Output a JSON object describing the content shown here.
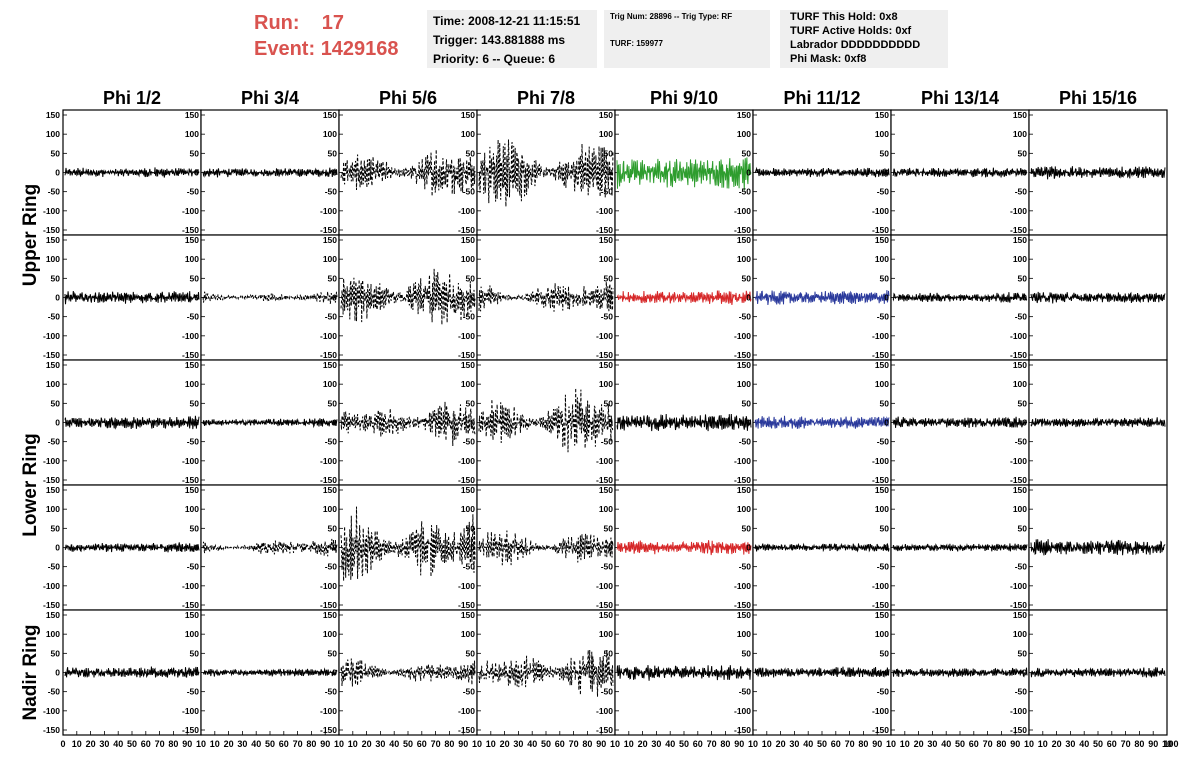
{
  "header": {
    "run_label": "Run:",
    "run_value": "17",
    "event_label": "Event:",
    "event_value": "1429168",
    "time": "Time: 2008-12-21 11:15:51",
    "trigger": "Trigger: 143.881888 ms",
    "priority": "Priority: 6 -- Queue: 6",
    "trig_num": "Trig Num: 28896 -- Trig Type: RF",
    "turf": "TURF: 159977",
    "turf_this_hold": "TURF This Hold: 0x8",
    "turf_active_holds": "TURF Active Holds: 0xf",
    "labrador": "Labrador DDDDDDDDDD",
    "phi_mask": "Phi Mask: 0xf8"
  },
  "colors": {
    "header_red": "#d9534f",
    "trace_black": "#000000",
    "trace_green": "#2e9d2e",
    "trace_red": "#d62728",
    "trace_blue": "#2b3a9c",
    "info_bg": "#efefef"
  },
  "chart_data": {
    "type": "line",
    "columns": [
      "Phi 1/2",
      "Phi 3/4",
      "Phi 5/6",
      "Phi 7/8",
      "Phi 9/10",
      "Phi 11/12",
      "Phi 13/14",
      "Phi 15/16"
    ],
    "ring_labels": [
      {
        "text": "Upper Ring",
        "rows": [
          0,
          1
        ]
      },
      {
        "text": "Lower Ring",
        "rows": [
          2,
          3
        ]
      },
      {
        "text": "Nadir Ring",
        "rows": [
          4
        ]
      }
    ],
    "xlim": [
      0,
      100
    ],
    "ylim": [
      -150,
      150
    ],
    "ytick_labels": [
      "-150",
      "-100",
      "-50",
      "0",
      "50",
      "100",
      "150"
    ],
    "xtick_labels": [
      "0",
      "10",
      "20",
      "30",
      "40",
      "50",
      "60",
      "70",
      "80",
      "90",
      "100"
    ],
    "panel_xtick_labels": [
      "10",
      "20",
      "30",
      "40",
      "50",
      "60",
      "70",
      "80",
      "90",
      "10"
    ],
    "first_panel_xtick_labels": [
      "0",
      "10",
      "20",
      "30",
      "40",
      "50",
      "60",
      "70",
      "80",
      "90",
      "10"
    ],
    "panels": [
      [
        {
          "amp": 12,
          "style": "solid",
          "color": "black"
        },
        {
          "amp": 12,
          "style": "solid",
          "color": "black"
        },
        {
          "amp": 55,
          "style": "dashed",
          "color": "black"
        },
        {
          "amp": 85,
          "style": "dashed",
          "color": "black"
        },
        {
          "amp": 40,
          "style": "solid",
          "color": "green"
        },
        {
          "amp": 12,
          "style": "solid",
          "color": "black"
        },
        {
          "amp": 12,
          "style": "solid",
          "color": "black"
        },
        {
          "amp": 16,
          "style": "solid",
          "color": "black"
        }
      ],
      [
        {
          "amp": 16,
          "style": "solid",
          "color": "black"
        },
        {
          "amp": 12,
          "style": "dashed",
          "color": "black"
        },
        {
          "amp": 70,
          "style": "dashed",
          "color": "black"
        },
        {
          "amp": 35,
          "style": "dashed",
          "color": "black"
        },
        {
          "amp": 18,
          "style": "solid",
          "color": "red"
        },
        {
          "amp": 18,
          "style": "solid",
          "color": "blue"
        },
        {
          "amp": 12,
          "style": "solid",
          "color": "black"
        },
        {
          "amp": 14,
          "style": "solid",
          "color": "black"
        }
      ],
      [
        {
          "amp": 16,
          "style": "solid",
          "color": "black"
        },
        {
          "amp": 10,
          "style": "solid",
          "color": "black"
        },
        {
          "amp": 45,
          "style": "dashed",
          "color": "black"
        },
        {
          "amp": 65,
          "style": "dashed",
          "color": "black"
        },
        {
          "amp": 22,
          "style": "solid",
          "color": "black"
        },
        {
          "amp": 16,
          "style": "solid",
          "color": "blue"
        },
        {
          "amp": 14,
          "style": "solid",
          "color": "black"
        },
        {
          "amp": 12,
          "style": "solid",
          "color": "black"
        }
      ],
      [
        {
          "amp": 12,
          "style": "solid",
          "color": "black"
        },
        {
          "amp": 18,
          "style": "dashed",
          "color": "black"
        },
        {
          "amp": 85,
          "style": "dashed",
          "color": "black"
        },
        {
          "amp": 40,
          "style": "dashed",
          "color": "black"
        },
        {
          "amp": 18,
          "style": "solid",
          "color": "red"
        },
        {
          "amp": 10,
          "style": "solid",
          "color": "black"
        },
        {
          "amp": 10,
          "style": "solid",
          "color": "black"
        },
        {
          "amp": 20,
          "style": "solid",
          "color": "black"
        }
      ],
      [
        {
          "amp": 14,
          "style": "solid",
          "color": "black"
        },
        {
          "amp": 10,
          "style": "solid",
          "color": "black"
        },
        {
          "amp": 30,
          "style": "dashed",
          "color": "black"
        },
        {
          "amp": 55,
          "style": "dashed",
          "color": "black"
        },
        {
          "amp": 20,
          "style": "solid",
          "color": "black"
        },
        {
          "amp": 14,
          "style": "solid",
          "color": "black"
        },
        {
          "amp": 12,
          "style": "solid",
          "color": "black"
        },
        {
          "amp": 12,
          "style": "solid",
          "color": "black"
        }
      ]
    ]
  }
}
